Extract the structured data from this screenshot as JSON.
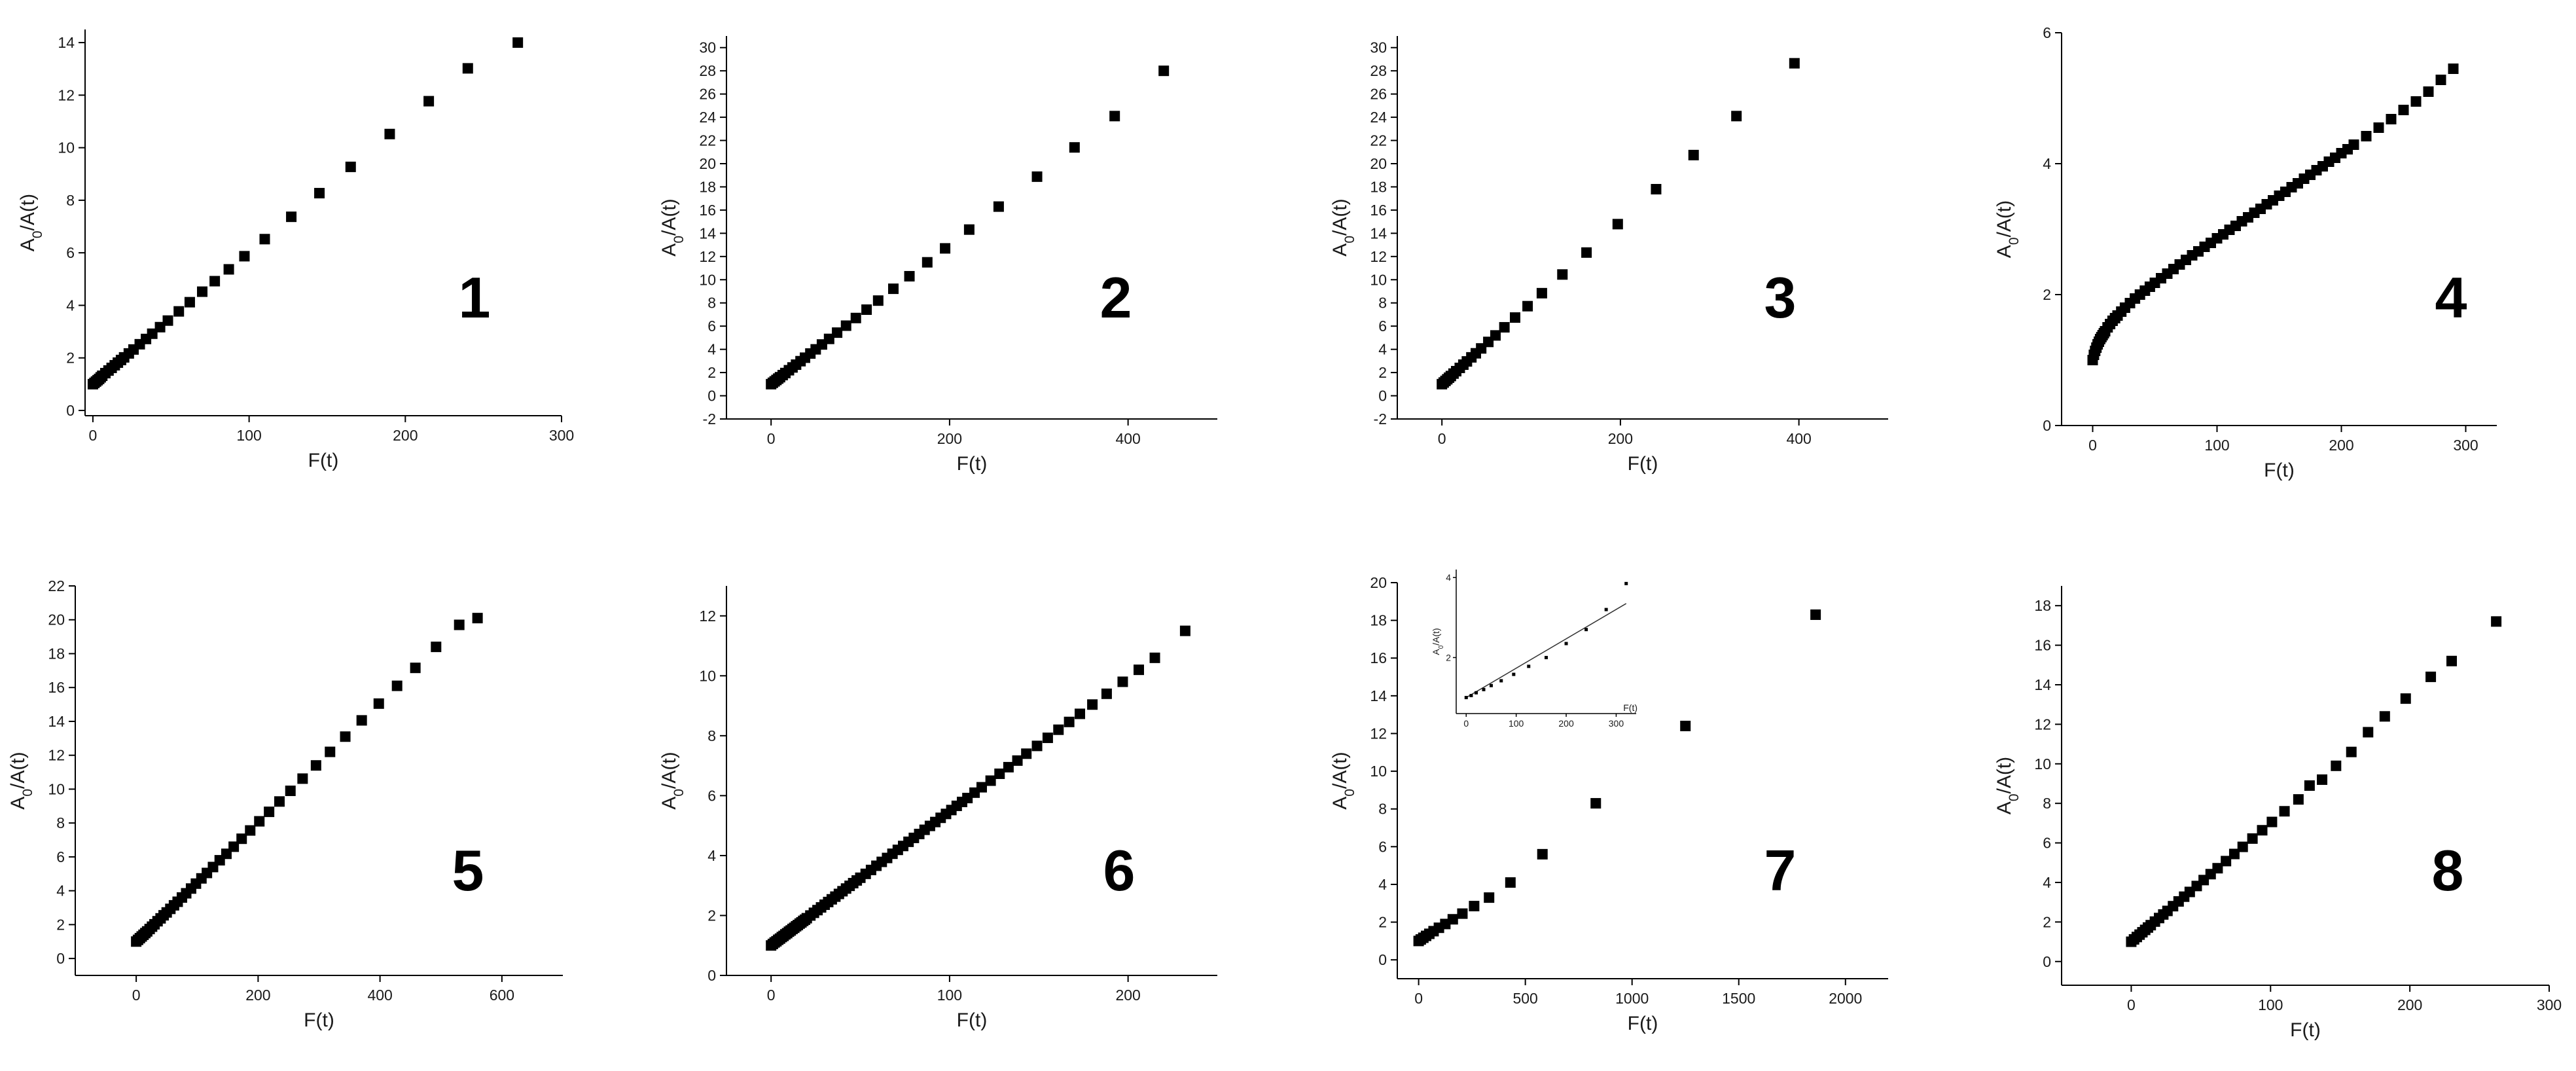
{
  "chart_data": [
    {
      "type": "scatter",
      "panel_label": "1",
      "xlabel": "F(t)",
      "ylabel_main": "A",
      "ylabel_sub": "0",
      "ylabel_tail": "/A(t)",
      "xlim": [
        -5,
        300
      ],
      "ylim": [
        -0.2,
        14.5
      ],
      "xticks": [
        0,
        100,
        200,
        300
      ],
      "yticks": [
        0,
        2,
        4,
        6,
        8,
        10,
        12,
        14
      ],
      "x": [
        0,
        1,
        2,
        3,
        4,
        5,
        6,
        8,
        10,
        12,
        14,
        16,
        18,
        20,
        23,
        26,
        30,
        34,
        38,
        43,
        48,
        55,
        62,
        70,
        78,
        87,
        97,
        110,
        127,
        145,
        165,
        190,
        215,
        240,
        272
      ],
      "y": [
        1.0,
        1.05,
        1.1,
        1.15,
        1.2,
        1.26,
        1.32,
        1.42,
        1.52,
        1.62,
        1.72,
        1.82,
        1.92,
        2.02,
        2.17,
        2.32,
        2.52,
        2.72,
        2.92,
        3.17,
        3.42,
        3.77,
        4.12,
        4.52,
        4.92,
        5.37,
        5.87,
        6.52,
        7.37,
        8.27,
        9.27,
        10.52,
        11.77,
        13.02,
        14.0
      ]
    },
    {
      "type": "scatter",
      "panel_label": "2",
      "xlabel": "F(t)",
      "ylabel_main": "A",
      "ylabel_sub": "0",
      "ylabel_tail": "/A(t)",
      "xlim": [
        -50,
        500
      ],
      "ylim": [
        -2,
        31
      ],
      "xticks": [
        0,
        200,
        400
      ],
      "yticks": [
        -2,
        0,
        2,
        4,
        6,
        8,
        10,
        12,
        14,
        16,
        18,
        20,
        22,
        24,
        26,
        28,
        30
      ],
      "x": [
        0,
        2,
        4,
        6,
        8,
        10,
        13,
        16,
        20,
        24,
        28,
        33,
        38,
        44,
        50,
        57,
        65,
        74,
        84,
        95,
        107,
        120,
        137,
        155,
        175,
        195,
        222,
        255,
        298,
        340,
        385,
        440
      ],
      "y": [
        1.0,
        1.12,
        1.24,
        1.36,
        1.48,
        1.6,
        1.78,
        1.96,
        2.2,
        2.44,
        2.68,
        2.98,
        3.28,
        3.64,
        4.0,
        4.42,
        4.9,
        5.44,
        6.04,
        6.7,
        7.42,
        8.2,
        9.22,
        10.3,
        11.5,
        12.7,
        14.32,
        16.3,
        18.88,
        21.4,
        24.1,
        28.0
      ]
    },
    {
      "type": "scatter",
      "panel_label": "3",
      "xlabel": "F(t)",
      "ylabel_main": "A",
      "ylabel_sub": "0",
      "ylabel_tail": "/A(t)",
      "xlim": [
        -50,
        500
      ],
      "ylim": [
        -2,
        31
      ],
      "xticks": [
        0,
        200,
        400
      ],
      "yticks": [
        -2,
        0,
        2,
        4,
        6,
        8,
        10,
        12,
        14,
        16,
        18,
        20,
        22,
        24,
        26,
        28,
        30
      ],
      "x": [
        0,
        2,
        4,
        6,
        8,
        10,
        13,
        16,
        20,
        24,
        28,
        33,
        38,
        44,
        52,
        60,
        70,
        82,
        96,
        112,
        135,
        162,
        197,
        240,
        282,
        330,
        395
      ],
      "y": [
        1.0,
        1.14,
        1.28,
        1.42,
        1.56,
        1.7,
        1.91,
        2.12,
        2.4,
        2.68,
        2.96,
        3.31,
        3.66,
        4.08,
        4.64,
        5.2,
        5.9,
        6.74,
        7.72,
        8.84,
        10.45,
        12.34,
        14.79,
        17.8,
        20.74,
        24.1,
        28.65
      ]
    },
    {
      "type": "scatter",
      "panel_label": "4",
      "xlabel": "F(t)",
      "ylabel_main": "A",
      "ylabel_sub": "0",
      "ylabel_tail": "/A(t)",
      "xlim": [
        -25,
        325
      ],
      "ylim": [
        0,
        6
      ],
      "xticks": [
        0,
        100,
        200,
        300
      ],
      "yticks": [
        0,
        2,
        4,
        6
      ],
      "x": [
        0,
        1,
        2,
        3,
        4,
        5,
        6,
        7,
        8,
        9,
        10,
        12,
        14,
        16,
        18,
        20,
        23,
        26,
        30,
        34,
        38,
        42,
        46,
        50,
        55,
        60,
        65,
        70,
        75,
        80,
        85,
        90,
        95,
        100,
        105,
        110,
        115,
        120,
        125,
        130,
        135,
        140,
        145,
        150,
        155,
        160,
        165,
        170,
        175,
        180,
        185,
        190,
        195,
        200,
        205,
        210,
        220,
        230,
        240,
        250,
        260,
        270,
        280,
        290
      ],
      "y": [
        1.0,
        1.08,
        1.14,
        1.19,
        1.24,
        1.28,
        1.32,
        1.35,
        1.38,
        1.41,
        1.44,
        1.5,
        1.55,
        1.6,
        1.64,
        1.68,
        1.74,
        1.8,
        1.87,
        1.94,
        2.0,
        2.06,
        2.12,
        2.18,
        2.25,
        2.32,
        2.39,
        2.46,
        2.53,
        2.6,
        2.66,
        2.73,
        2.79,
        2.86,
        2.92,
        2.99,
        3.05,
        3.12,
        3.18,
        3.25,
        3.31,
        3.38,
        3.44,
        3.51,
        3.57,
        3.64,
        3.7,
        3.77,
        3.83,
        3.9,
        3.96,
        4.03,
        4.09,
        4.16,
        4.22,
        4.29,
        4.42,
        4.55,
        4.68,
        4.82,
        4.95,
        5.1,
        5.28,
        5.45
      ]
    },
    {
      "type": "scatter",
      "panel_label": "5",
      "xlabel": "F(t)",
      "ylabel_main": "A",
      "ylabel_sub": "0",
      "ylabel_tail": "/A(t)",
      "xlim": [
        -100,
        700
      ],
      "ylim": [
        -1,
        22
      ],
      "xticks": [
        0,
        200,
        400,
        600
      ],
      "yticks": [
        0,
        2,
        4,
        6,
        8,
        10,
        12,
        14,
        16,
        18,
        20,
        22
      ],
      "x": [
        0,
        3,
        6,
        9,
        12,
        15,
        18,
        22,
        26,
        30,
        35,
        40,
        45,
        50,
        56,
        62,
        68,
        75,
        82,
        90,
        98,
        107,
        116,
        126,
        137,
        148,
        160,
        173,
        187,
        202,
        218,
        235,
        253,
        273,
        295,
        318,
        343,
        370,
        398,
        428,
        458,
        492,
        530,
        560
      ],
      "y": [
        1.0,
        1.1,
        1.2,
        1.3,
        1.4,
        1.5,
        1.6,
        1.74,
        1.88,
        2.02,
        2.2,
        2.37,
        2.55,
        2.72,
        2.93,
        3.14,
        3.35,
        3.6,
        3.85,
        4.13,
        4.42,
        4.73,
        5.05,
        5.4,
        5.8,
        6.18,
        6.6,
        7.07,
        7.56,
        8.1,
        8.66,
        9.27,
        9.9,
        10.62,
        11.4,
        12.2,
        13.1,
        14.06,
        15.05,
        16.1,
        17.16,
        18.4,
        19.7,
        20.1
      ]
    },
    {
      "type": "scatter",
      "panel_label": "6",
      "xlabel": "F(t)",
      "ylabel_main": "A",
      "ylabel_sub": "0",
      "ylabel_tail": "/A(t)",
      "xlim": [
        -25,
        250
      ],
      "ylim": [
        0,
        13
      ],
      "xticks": [
        0,
        100,
        200
      ],
      "yticks": [
        0,
        2,
        4,
        6,
        8,
        10,
        12
      ],
      "x": [
        0,
        1,
        2,
        3,
        4,
        5,
        6,
        7,
        8,
        9,
        10,
        11,
        12,
        13,
        14,
        15,
        16,
        17,
        18,
        19,
        20,
        22,
        24,
        26,
        28,
        30,
        32,
        34,
        36,
        38,
        40,
        42,
        44,
        46,
        48,
        50,
        53,
        56,
        59,
        62,
        65,
        68,
        71,
        74,
        77,
        80,
        83,
        86,
        89,
        92,
        95,
        98,
        101,
        104,
        107,
        110,
        114,
        118,
        123,
        128,
        133,
        138,
        143,
        149,
        155,
        161,
        167,
        173,
        180,
        188,
        197,
        206,
        215,
        232
      ],
      "y": [
        1.0,
        1.05,
        1.1,
        1.14,
        1.19,
        1.23,
        1.28,
        1.32,
        1.37,
        1.41,
        1.46,
        1.5,
        1.55,
        1.59,
        1.64,
        1.68,
        1.73,
        1.77,
        1.82,
        1.86,
        1.91,
        2.0,
        2.09,
        2.18,
        2.27,
        2.36,
        2.45,
        2.54,
        2.63,
        2.72,
        2.81,
        2.9,
        2.99,
        3.08,
        3.17,
        3.26,
        3.39,
        3.52,
        3.66,
        3.79,
        3.92,
        4.06,
        4.19,
        4.32,
        4.46,
        4.59,
        4.72,
        4.86,
        4.99,
        5.12,
        5.26,
        5.39,
        5.52,
        5.66,
        5.79,
        5.92,
        6.1,
        6.28,
        6.5,
        6.73,
        6.95,
        7.17,
        7.4,
        7.66,
        7.93,
        8.2,
        8.46,
        8.73,
        9.04,
        9.4,
        9.8,
        10.2,
        10.6,
        11.5
      ]
    },
    {
      "type": "scatter",
      "panel_label": "7",
      "xlabel": "F(t)",
      "ylabel_main": "A",
      "ylabel_sub": "0",
      "ylabel_tail": "/A(t)",
      "xlim": [
        -100,
        2200
      ],
      "ylim": [
        -1,
        20
      ],
      "xticks": [
        0,
        500,
        1000,
        1500,
        2000
      ],
      "yticks": [
        0,
        2,
        4,
        6,
        8,
        10,
        12,
        14,
        16,
        18,
        20
      ],
      "x": [
        0,
        10,
        22,
        35,
        50,
        70,
        95,
        125,
        160,
        205,
        260,
        330,
        430,
        580,
        830,
        1250,
        1860
      ],
      "y": [
        1.0,
        1.08,
        1.17,
        1.27,
        1.38,
        1.52,
        1.7,
        1.9,
        2.15,
        2.45,
        2.85,
        3.3,
        4.1,
        5.6,
        8.3,
        12.4,
        18.3
      ],
      "inset": {
        "xlabel": "F(t)",
        "ylabel_main": "A",
        "ylabel_sub": "0",
        "ylabel_tail": "/A(t)",
        "xlim": [
          -20,
          340
        ],
        "ylim": [
          0.6,
          4.2
        ],
        "xticks": [
          0,
          100,
          200,
          300
        ],
        "yticks": [
          2,
          4
        ],
        "x": [
          0,
          10,
          20,
          35,
          50,
          70,
          95,
          125,
          160,
          200,
          240,
          280,
          320
        ],
        "y": [
          1.0,
          1.05,
          1.12,
          1.2,
          1.3,
          1.42,
          1.58,
          1.78,
          2.0,
          2.35,
          2.7,
          3.2,
          3.85
        ],
        "fit_line": [
          [
            0,
            1.0
          ],
          [
            320,
            3.35
          ]
        ]
      }
    },
    {
      "type": "scatter",
      "panel_label": "8",
      "xlabel": "F(t)",
      "ylabel_main": "A",
      "ylabel_sub": "0",
      "ylabel_tail": "/A(t)",
      "xlim": [
        -50,
        300
      ],
      "ylim": [
        -1.2,
        19
      ],
      "xticks": [
        0,
        100,
        200,
        300
      ],
      "yticks": [
        0,
        2,
        4,
        6,
        8,
        10,
        12,
        14,
        16,
        18
      ],
      "x": [
        0,
        2,
        4,
        6,
        8,
        10,
        12,
        14,
        17,
        20,
        23,
        26,
        30,
        34,
        38,
        42,
        47,
        52,
        57,
        62,
        68,
        74,
        80,
        87,
        94,
        101,
        110,
        120,
        128,
        137,
        147,
        158,
        170,
        182,
        197,
        215,
        230,
        262
      ],
      "y": [
        1.0,
        1.12,
        1.24,
        1.36,
        1.48,
        1.6,
        1.72,
        1.84,
        2.02,
        2.2,
        2.38,
        2.56,
        2.8,
        3.04,
        3.28,
        3.52,
        3.82,
        4.12,
        4.42,
        4.72,
        5.08,
        5.44,
        5.8,
        6.22,
        6.64,
        7.06,
        7.6,
        8.2,
        8.9,
        9.2,
        9.9,
        10.6,
        11.6,
        12.4,
        13.3,
        14.4,
        15.2,
        17.2
      ]
    }
  ]
}
